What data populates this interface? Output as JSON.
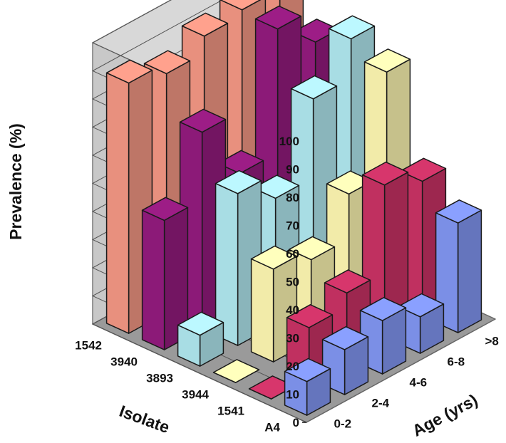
{
  "chart_data": {
    "type": "bar",
    "subtype": "3d-grouped",
    "title": "",
    "ylabel": "Prevalence (%)",
    "xlabel": "Age (yrs)",
    "zlabel": "Isolate",
    "ylim": [
      0,
      100
    ],
    "yticks": [
      0,
      10,
      20,
      30,
      40,
      50,
      60,
      70,
      80,
      90,
      100
    ],
    "grid": true,
    "categories": [
      "0-2",
      "2-4",
      "4-6",
      "6-8",
      ">8"
    ],
    "series": [
      {
        "name": "1542",
        "color": "#e8907e",
        "values": [
          89,
          85,
          91,
          93,
          100
        ]
      },
      {
        "name": "3940",
        "color": "#8c1a78",
        "values": [
          46,
          70,
          48,
          92,
          80
        ]
      },
      {
        "name": "3893",
        "color": "#a8dde4",
        "values": [
          11,
          54,
          45,
          73,
          87
        ]
      },
      {
        "name": "3944",
        "color": "#f2eba9",
        "values": [
          0,
          33,
          29,
          45,
          81
        ]
      },
      {
        "name": "1541",
        "color": "#c03060",
        "values": [
          0,
          18,
          23,
          54,
          48
        ]
      },
      {
        "name": "A4",
        "color": "#7b8fe6",
        "values": [
          12,
          16,
          19,
          13,
          39
        ]
      }
    ]
  }
}
